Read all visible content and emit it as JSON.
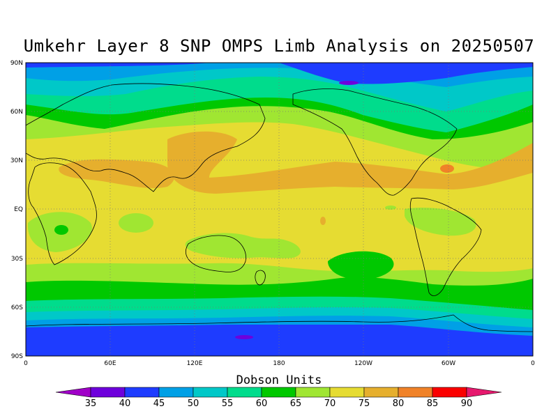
{
  "title": "Umkehr Layer 8 SNP OMPS Limb Analysis on 20250507",
  "lat_labels": [
    "90N",
    "60N",
    "30N",
    "EQ",
    "30S",
    "60S",
    "90S"
  ],
  "lon_labels": [
    "0",
    "60E",
    "120E",
    "180",
    "120W",
    "60W",
    "0"
  ],
  "colorbar": {
    "title": "Dobson Units",
    "labels": [
      "35",
      "40",
      "45",
      "50",
      "55",
      "60",
      "65",
      "70",
      "75",
      "80",
      "85",
      "90"
    ],
    "colors": [
      "#a000c8",
      "#6e00dc",
      "#1e3cff",
      "#00a0e6",
      "#00c8c8",
      "#00dc8c",
      "#00c800",
      "#a0e632",
      "#e6dc32",
      "#e6af2d",
      "#f08228",
      "#fa0000",
      "#e6196e"
    ]
  }
}
